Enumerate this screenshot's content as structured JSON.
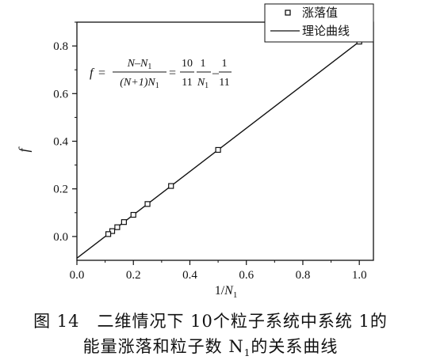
{
  "chart_data": {
    "type": "scatter",
    "xlabel": "1/N",
    "xlabel_sub": "1",
    "ylabel": "f",
    "xlim": [
      0.0,
      1.05
    ],
    "ylim": [
      -0.1,
      0.9
    ],
    "x_ticks": [
      0.0,
      0.2,
      0.4,
      0.6,
      0.8,
      1.0
    ],
    "x_tick_labels": [
      "0.0",
      "0.2",
      "0.4",
      "0.6",
      "0.8",
      "1.0"
    ],
    "y_ticks": [
      0.0,
      0.2,
      0.4,
      0.6,
      0.8
    ],
    "y_tick_labels": [
      "0.0",
      "0.2",
      "0.4",
      "0.6",
      "0.8"
    ],
    "legend_position": "top-right",
    "series": [
      {
        "name": "涨落值",
        "kind": "scatter",
        "marker": "open-square",
        "x": [
          1.0,
          0.5,
          0.3333,
          0.25,
          0.2,
          0.1667,
          0.1429,
          0.125,
          0.1111
        ],
        "y": [
          0.8182,
          0.3636,
          0.2121,
          0.1364,
          0.0909,
          0.0606,
          0.039,
          0.0227,
          0.0101
        ]
      },
      {
        "name": "理论曲线",
        "kind": "line",
        "x": [
          0.0,
          1.05
        ],
        "y": [
          -0.0909,
          0.8636
        ]
      }
    ]
  },
  "formula": {
    "lhs": "f",
    "eq": "=",
    "num_a": "N",
    "minus": "–",
    "num_b": "N",
    "sub1": "1",
    "den_a": "(N+1)N",
    "sub2": "1",
    "frac2_num": "10",
    "frac2_den": "11",
    "frac3_num": "1",
    "frac3_den": "N",
    "sub3": "1",
    "frac4_num": "1",
    "frac4_den": "11"
  },
  "caption": {
    "number": "图 14",
    "line1": "二维情况下 10个粒子系统中系统 1的",
    "line2_pre": "能量涨落和粒子数 N",
    "line2_sub": "1",
    "line2_post": "的关系曲线"
  }
}
